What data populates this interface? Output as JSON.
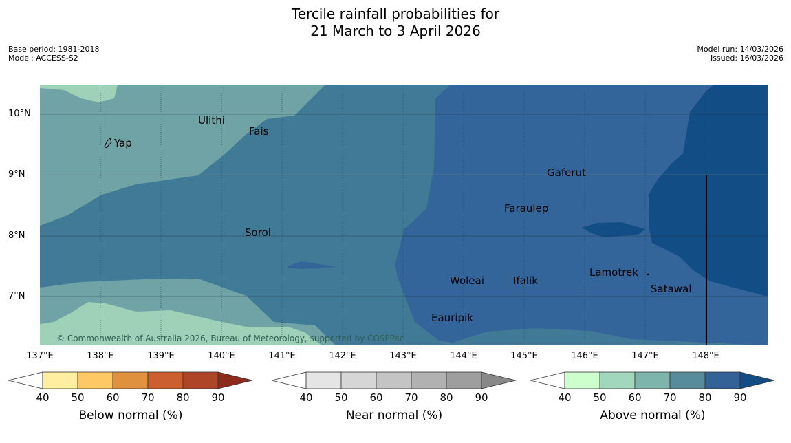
{
  "title": {
    "line1": "Tercile rainfall probabilities for",
    "line2": "21 March to 3 April 2026"
  },
  "meta": {
    "base_period": "Base period: 1981-2018",
    "model": "Model: ACCESS-S2",
    "model_run": "Model run: 14/03/2026",
    "issued": "Issued: 16/03/2026"
  },
  "axes": {
    "lat_labels": [
      "10°N",
      "9°N",
      "8°N",
      "7°N"
    ],
    "lon_labels": [
      "137°E",
      "138°E",
      "139°E",
      "140°E",
      "141°E",
      "142°E",
      "143°E",
      "144°E",
      "145°E",
      "146°E",
      "147°E",
      "148°E"
    ]
  },
  "places": [
    "Ulithi",
    "Fais",
    "Yap",
    "Gaferut",
    "Faraulep",
    "Sorol",
    "Lamotrek",
    "Woleai",
    "Ifalik",
    "Satawal",
    "Eauripik"
  ],
  "copyright": "© Commonwealth of Australia 2026, Bureau of Meteorology, supported by COSPPac",
  "colorbars": {
    "ticks": [
      "40",
      "50",
      "60",
      "70",
      "80",
      "90"
    ],
    "below": {
      "label": "Below normal (%)",
      "colors": [
        "#ffffff",
        "#ffeda0",
        "#fec965",
        "#e09140",
        "#cc5f2f",
        "#ad4526",
        "#8c2b1d"
      ]
    },
    "near": {
      "label": "Near normal (%)",
      "colors": [
        "#ffffff",
        "#e5e5e5",
        "#d6d6d6",
        "#c4c4c4",
        "#b1b1b1",
        "#9e9e9e",
        "#888888"
      ]
    },
    "above": {
      "label": "Above normal (%)",
      "colors": [
        "#ffffff",
        "#ccffcc",
        "#a1d8bd",
        "#7db4ac",
        "#568c9c",
        "#336296",
        "#144b82"
      ]
    }
  }
}
